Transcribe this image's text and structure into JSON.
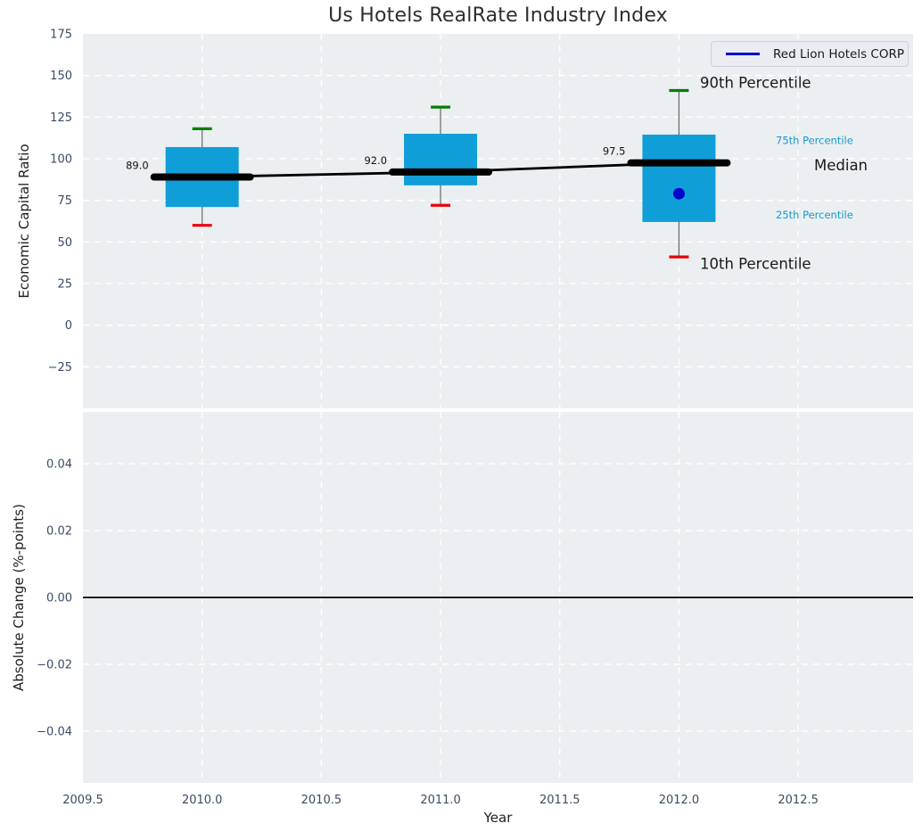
{
  "figure": {
    "title": "Us Hotels RealRate Industry Index"
  },
  "legend": {
    "label": "Red Lion Hotels CORP"
  },
  "colors": {
    "plot_bg": "#eceff1",
    "grid": "#ffffff",
    "box_fill": "#0f9ed8",
    "whisker": "#666666",
    "cap_high": "#008000",
    "cap_low": "#e8000b",
    "median_line": "#000000",
    "company": "#0000cd",
    "tick_text": "#3b4a63",
    "accent_text": "#1699cf",
    "label_text": "#1a1a1a",
    "zero_line": "#000000"
  },
  "chart_data": [
    {
      "type": "boxplot",
      "title": "Us Hotels RealRate Industry Index",
      "ylabel": "Economic Capital Ratio",
      "ylim": [
        -50,
        175
      ],
      "yticks": [
        175,
        150,
        125,
        100,
        75,
        50,
        25,
        0,
        -25
      ],
      "ytick_labels": [
        "175",
        "150",
        "125",
        "100",
        "75",
        "50",
        "25",
        "0",
        "−25"
      ],
      "xlim": [
        2009.5,
        2012.982
      ],
      "xticks": [
        2009.5,
        2010.0,
        2010.5,
        2011.0,
        2011.5,
        2012.0,
        2012.5
      ],
      "xtick_labels": [
        "2009.5",
        "2010.0",
        "2010.5",
        "2011.0",
        "2011.5",
        "2012.0",
        "2012.5"
      ],
      "grid": true,
      "legend_position": "upper right",
      "series": [
        {
          "year": 2010,
          "p10": 60,
          "p25": 71,
          "median": 89.0,
          "p75": 107,
          "p90": 118,
          "median_label": "89.0"
        },
        {
          "year": 2011,
          "p10": 72,
          "p25": 84,
          "median": 92.0,
          "p75": 115,
          "p90": 131,
          "median_label": "92.0"
        },
        {
          "year": 2012,
          "p10": 41,
          "p25": 62,
          "median": 97.5,
          "p75": 114.5,
          "p90": 141,
          "median_label": "97.5"
        }
      ],
      "company_point": {
        "name": "Red Lion Hotels CORP",
        "year": 2012,
        "value": 79
      },
      "percentile_annotations": [
        {
          "text": "90th Percentile",
          "anchor": "p90",
          "emphasis": "large"
        },
        {
          "text": "75th Percentile",
          "anchor": "p75",
          "emphasis": "small"
        },
        {
          "text": "Median",
          "anchor": "median",
          "emphasis": "large"
        },
        {
          "text": "25th Percentile",
          "anchor": "p25",
          "emphasis": "small"
        },
        {
          "text": "10th Percentile",
          "anchor": "p10",
          "emphasis": "large"
        }
      ]
    },
    {
      "type": "line",
      "ylabel": "Absolute Change (%-points)",
      "xlabel": "Year",
      "ylim": [
        -0.0555,
        0.0555
      ],
      "yticks": [
        0.04,
        0.02,
        0.0,
        -0.02,
        -0.04
      ],
      "ytick_labels": [
        "0.04",
        "0.02",
        "0.00",
        "−0.02",
        "−0.04"
      ],
      "grid": true,
      "zero_line": 0.0,
      "series": []
    }
  ]
}
